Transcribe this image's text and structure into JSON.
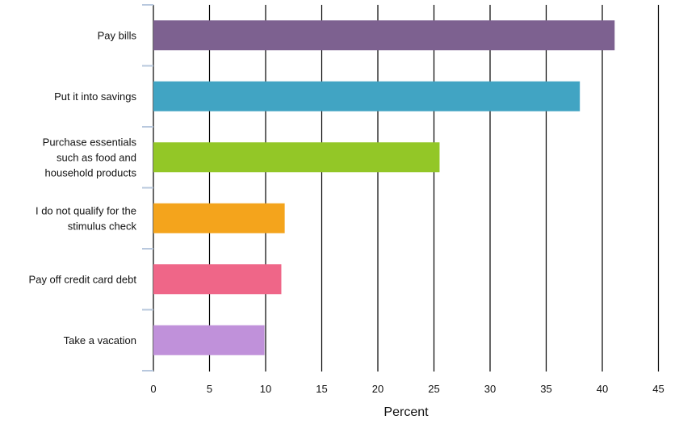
{
  "chart_data": {
    "type": "bar",
    "orientation": "horizontal",
    "categories": [
      "Pay bills",
      "Put it into savings",
      "Purchase essentials such as food and household products",
      "I do not qualify for the stimulus check",
      "Pay off credit card debt",
      "Take a vacation"
    ],
    "category_lines": [
      [
        "Pay bills"
      ],
      [
        "Put it into savings"
      ],
      [
        "Purchase essentials",
        "such as food and",
        "household products"
      ],
      [
        "I do not qualify for the",
        "stimulus check"
      ],
      [
        "Pay off credit card debt"
      ],
      [
        "Take a vacation"
      ]
    ],
    "values": [
      41.1,
      38.0,
      25.5,
      11.7,
      11.4,
      9.9
    ],
    "colors": [
      "#7d6190",
      "#41a4c3",
      "#93c727",
      "#f4a41c",
      "#ef6688",
      "#c091da"
    ],
    "xlabel": "Percent",
    "xlim": [
      0,
      45
    ],
    "xticks": [
      0,
      5,
      10,
      15,
      20,
      25,
      30,
      35,
      40,
      45
    ],
    "grid": true
  }
}
